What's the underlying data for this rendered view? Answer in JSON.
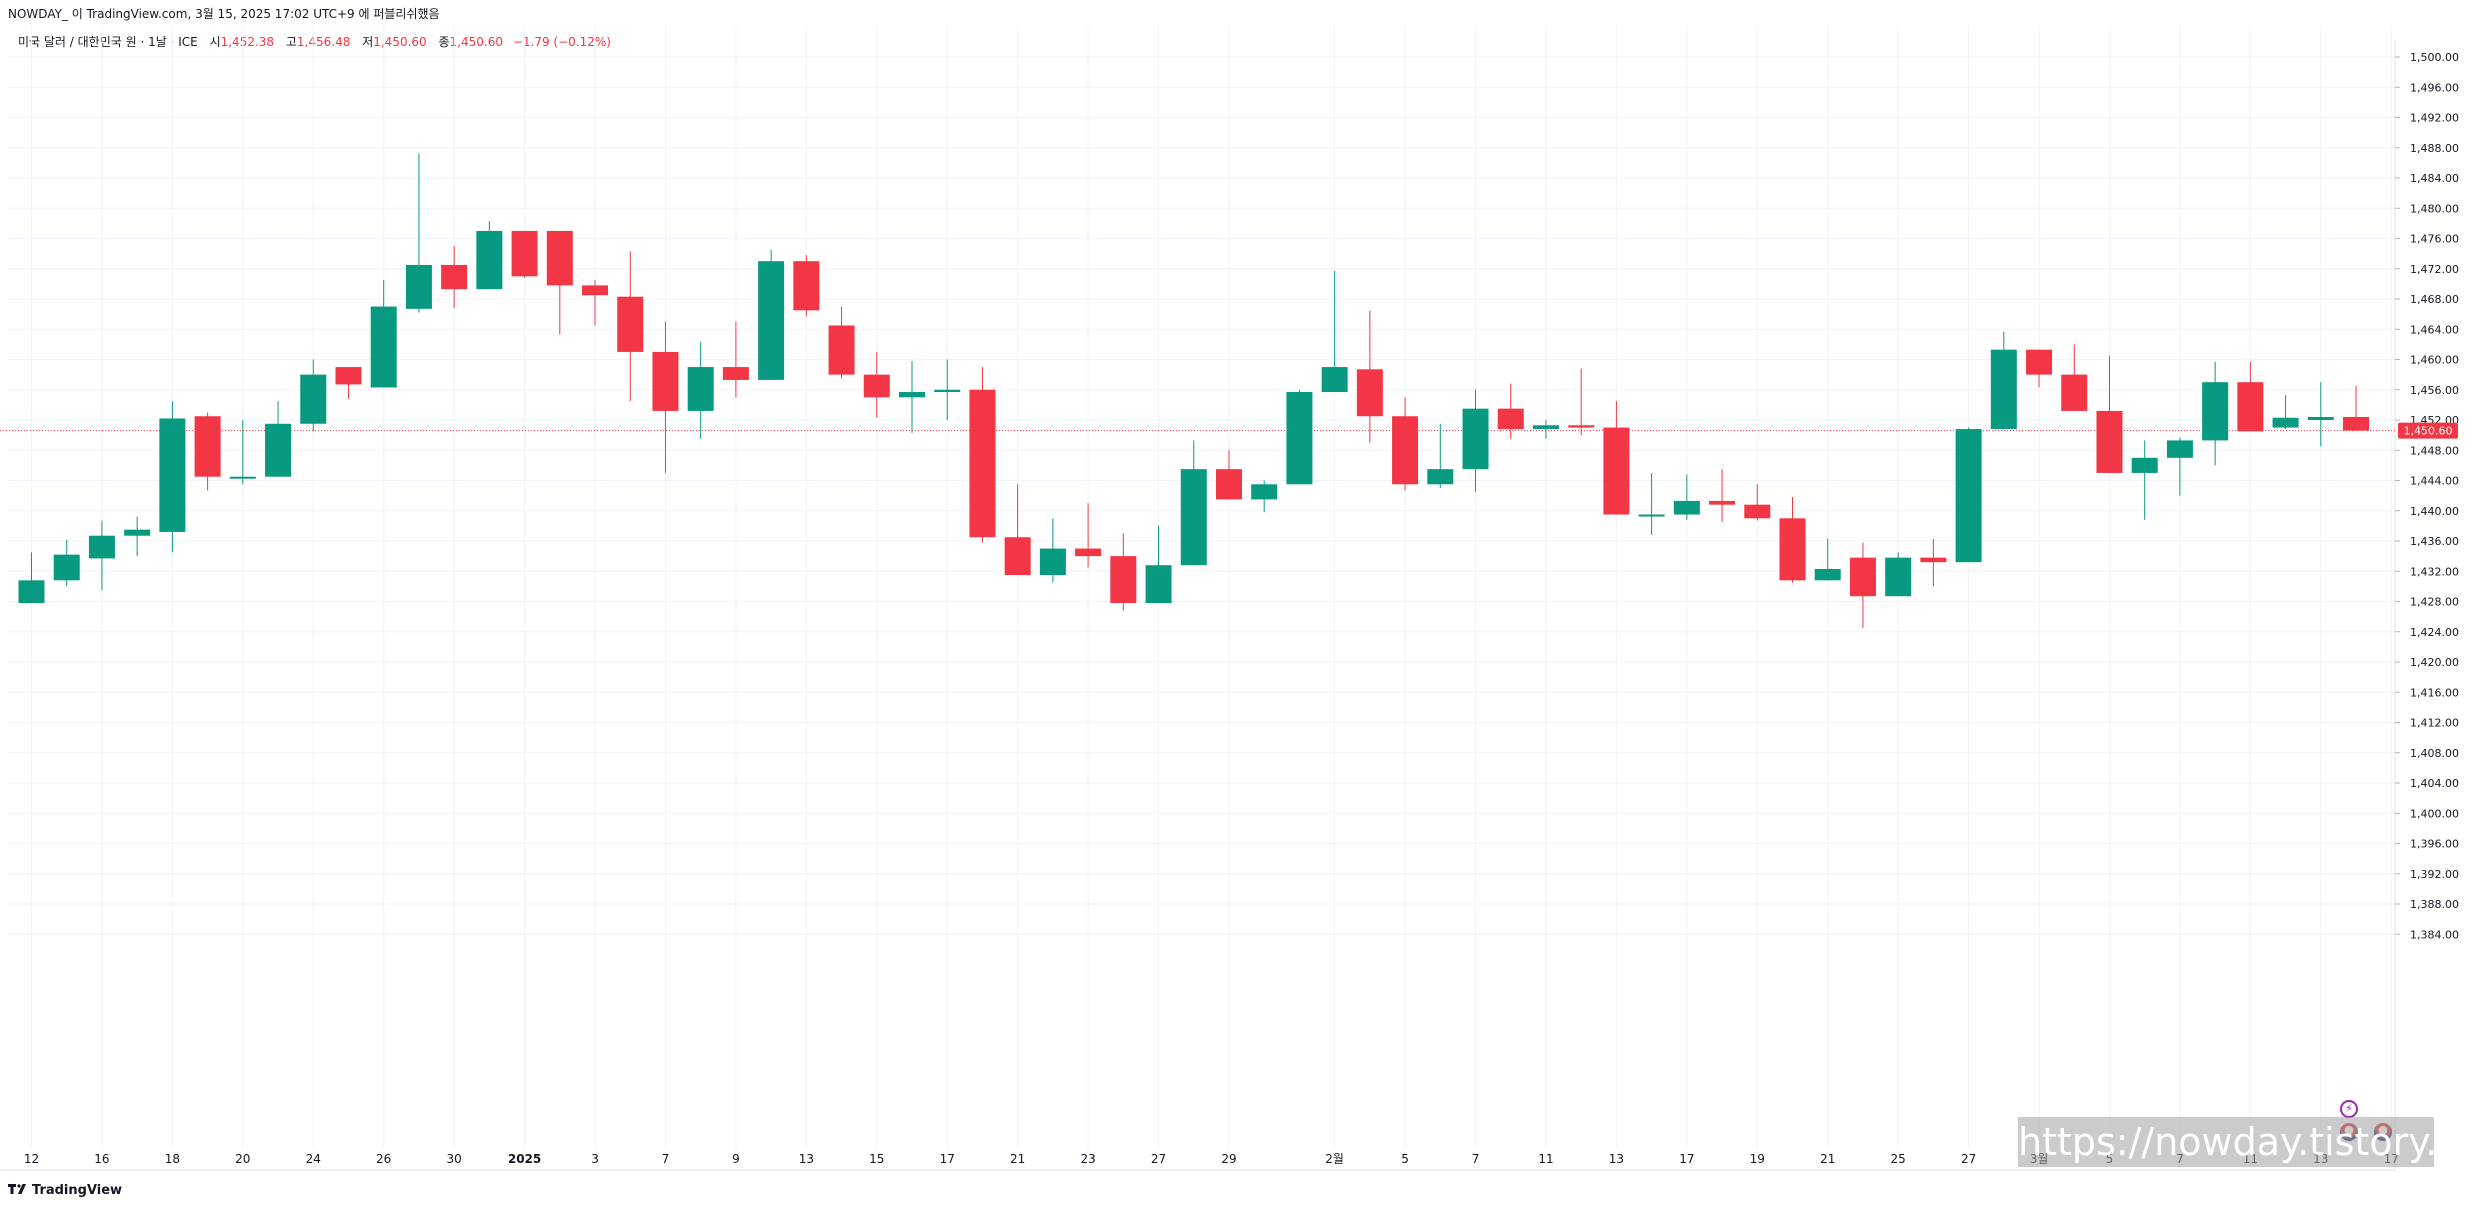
{
  "header": {
    "publish_line": "NOWDAY_ 이 TradingView.com, 3월 15, 2025 17:02 UTC+9 에 퍼블리쉬했음"
  },
  "legend": {
    "symbol": "미국 달러 / 대한민국 원 · 1날 · ICE",
    "open_label": "시",
    "open_value": "1,452.38",
    "high_label": "고",
    "high_value": "1,456.48",
    "low_label": "저",
    "low_value": "1,450.60",
    "close_label": "종",
    "close_value": "1,450.60",
    "change": "−1.79 (−0.12%)"
  },
  "footer": {
    "brand": "TradingView"
  },
  "watermark": "https://nowday.tistory.com",
  "icons": {
    "flash": "flash-icon",
    "flag": "us-flag-icon"
  },
  "colors": {
    "up": "#089981",
    "down": "#f23645",
    "grid": "#f0f3fa",
    "text": "#131722"
  },
  "chart_data": {
    "type": "candlestick",
    "ylim": [
      1382,
      1502
    ],
    "y_ticks": [
      1384,
      1388,
      1392,
      1396,
      1400,
      1404,
      1408,
      1412,
      1416,
      1420,
      1424,
      1428,
      1432,
      1436,
      1440,
      1444,
      1448,
      1452,
      1456,
      1460,
      1464,
      1468,
      1472,
      1476,
      1480,
      1484,
      1488,
      1492,
      1496,
      1500
    ],
    "y_tick_labels": [
      "1,384.00",
      "1,388.00",
      "1,392.00",
      "1,396.00",
      "1,400.00",
      "1,404.00",
      "1,408.00",
      "1,412.00",
      "1,416.00",
      "1,420.00",
      "1,424.00",
      "1,428.00",
      "1,432.00",
      "1,436.00",
      "1,440.00",
      "1,444.00",
      "1,448.00",
      "1,452.00",
      "1,456.00",
      "1,460.00",
      "1,464.00",
      "1,468.00",
      "1,472.00",
      "1,476.00",
      "1,480.00",
      "1,484.00",
      "1,488.00",
      "1,492.00",
      "1,496.00",
      "1,500.00"
    ],
    "x_tick_labels": [
      {
        "i": 0,
        "label": "12"
      },
      {
        "i": 2,
        "label": "16"
      },
      {
        "i": 4,
        "label": "18"
      },
      {
        "i": 6,
        "label": "20"
      },
      {
        "i": 8,
        "label": "24"
      },
      {
        "i": 10,
        "label": "26"
      },
      {
        "i": 12,
        "label": "30"
      },
      {
        "i": 14,
        "label": "2025",
        "bold": true
      },
      {
        "i": 16,
        "label": "3"
      },
      {
        "i": 18,
        "label": "7"
      },
      {
        "i": 20,
        "label": "9"
      },
      {
        "i": 22,
        "label": "13"
      },
      {
        "i": 24,
        "label": "15"
      },
      {
        "i": 26,
        "label": "17"
      },
      {
        "i": 28,
        "label": "21"
      },
      {
        "i": 30,
        "label": "23"
      },
      {
        "i": 32,
        "label": "27"
      },
      {
        "i": 34,
        "label": "29"
      },
      {
        "i": 37,
        "label": "2월"
      },
      {
        "i": 39,
        "label": "5"
      },
      {
        "i": 41,
        "label": "7"
      },
      {
        "i": 43,
        "label": "11"
      },
      {
        "i": 45,
        "label": "13"
      },
      {
        "i": 47,
        "label": "17"
      },
      {
        "i": 49,
        "label": "19"
      },
      {
        "i": 51,
        "label": "21"
      },
      {
        "i": 53,
        "label": "25"
      },
      {
        "i": 55,
        "label": "27"
      },
      {
        "i": 57,
        "label": "3월"
      },
      {
        "i": 59,
        "label": "5"
      },
      {
        "i": 61,
        "label": "7"
      },
      {
        "i": 63,
        "label": "11"
      },
      {
        "i": 65,
        "label": "13"
      },
      {
        "i": 67,
        "label": "17"
      }
    ],
    "current_price": 1450.6,
    "current_price_label": "1,450.60",
    "candles": [
      {
        "o": 1427.8,
        "h": 1434.5,
        "l": 1427.8,
        "c": 1430.8
      },
      {
        "o": 1430.8,
        "h": 1436.2,
        "l": 1430.0,
        "c": 1434.2
      },
      {
        "o": 1433.7,
        "h": 1438.7,
        "l": 1429.5,
        "c": 1436.7
      },
      {
        "o": 1436.7,
        "h": 1439.2,
        "l": 1434.0,
        "c": 1437.5
      },
      {
        "o": 1437.2,
        "h": 1454.5,
        "l": 1434.5,
        "c": 1452.2
      },
      {
        "o": 1452.5,
        "h": 1453.0,
        "l": 1442.7,
        "c": 1444.5
      },
      {
        "o": 1444.5,
        "h": 1452.0,
        "l": 1443.5,
        "c": 1444.5
      },
      {
        "o": 1444.5,
        "h": 1454.5,
        "l": 1444.5,
        "c": 1451.5
      },
      {
        "o": 1451.5,
        "h": 1460.0,
        "l": 1450.5,
        "c": 1458.0
      },
      {
        "o": 1459.0,
        "h": 1459.0,
        "l": 1454.8,
        "c": 1456.7
      },
      {
        "o": 1456.3,
        "h": 1470.5,
        "l": 1456.3,
        "c": 1467.0
      },
      {
        "o": 1466.7,
        "h": 1487.2,
        "l": 1466.2,
        "c": 1472.5
      },
      {
        "o": 1472.5,
        "h": 1475.0,
        "l": 1466.8,
        "c": 1469.3
      },
      {
        "o": 1469.3,
        "h": 1478.3,
        "l": 1469.3,
        "c": 1477.0
      },
      {
        "o": 1477.0,
        "h": 1477.0,
        "l": 1470.8,
        "c": 1471.0
      },
      {
        "o": 1477.0,
        "h": 1477.0,
        "l": 1463.3,
        "c": 1469.8
      },
      {
        "o": 1469.8,
        "h": 1470.5,
        "l": 1464.5,
        "c": 1468.5
      },
      {
        "o": 1468.3,
        "h": 1474.3,
        "l": 1454.5,
        "c": 1461.0
      },
      {
        "o": 1461.0,
        "h": 1465.0,
        "l": 1445.0,
        "c": 1453.2
      },
      {
        "o": 1453.2,
        "h": 1462.3,
        "l": 1449.5,
        "c": 1459.0
      },
      {
        "o": 1459.0,
        "h": 1465.0,
        "l": 1455.0,
        "c": 1457.3
      },
      {
        "o": 1457.3,
        "h": 1474.5,
        "l": 1457.3,
        "c": 1473.0
      },
      {
        "o": 1473.0,
        "h": 1473.8,
        "l": 1465.7,
        "c": 1466.5
      },
      {
        "o": 1464.5,
        "h": 1467.0,
        "l": 1457.5,
        "c": 1458.0
      },
      {
        "o": 1458.0,
        "h": 1461.0,
        "l": 1452.3,
        "c": 1455.0
      },
      {
        "o": 1455.0,
        "h": 1459.8,
        "l": 1450.3,
        "c": 1455.7
      },
      {
        "o": 1455.7,
        "h": 1460.0,
        "l": 1452.0,
        "c": 1456.0
      },
      {
        "o": 1456.0,
        "h": 1459.0,
        "l": 1435.8,
        "c": 1436.5
      },
      {
        "o": 1436.5,
        "h": 1443.5,
        "l": 1431.5,
        "c": 1431.5
      },
      {
        "o": 1431.5,
        "h": 1439.0,
        "l": 1430.5,
        "c": 1435.0
      },
      {
        "o": 1435.0,
        "h": 1441.0,
        "l": 1432.5,
        "c": 1434.0
      },
      {
        "o": 1434.0,
        "h": 1437.0,
        "l": 1426.8,
        "c": 1427.8
      },
      {
        "o": 1427.8,
        "h": 1438.0,
        "l": 1427.8,
        "c": 1432.8
      },
      {
        "o": 1432.8,
        "h": 1449.3,
        "l": 1432.8,
        "c": 1445.5
      },
      {
        "o": 1445.5,
        "h": 1448.0,
        "l": 1441.5,
        "c": 1441.5
      },
      {
        "o": 1441.5,
        "h": 1444.0,
        "l": 1439.8,
        "c": 1443.5
      },
      {
        "o": 1443.5,
        "h": 1456.0,
        "l": 1443.5,
        "c": 1455.7
      },
      {
        "o": 1455.7,
        "h": 1471.7,
        "l": 1455.7,
        "c": 1459.0
      },
      {
        "o": 1458.7,
        "h": 1466.5,
        "l": 1449.0,
        "c": 1452.5
      },
      {
        "o": 1452.5,
        "h": 1455.0,
        "l": 1442.7,
        "c": 1443.5
      },
      {
        "o": 1443.5,
        "h": 1451.5,
        "l": 1443.0,
        "c": 1445.5
      },
      {
        "o": 1445.5,
        "h": 1456.0,
        "l": 1442.5,
        "c": 1453.5
      },
      {
        "o": 1453.5,
        "h": 1456.8,
        "l": 1449.5,
        "c": 1450.8
      },
      {
        "o": 1450.8,
        "h": 1452.0,
        "l": 1449.5,
        "c": 1451.3
      },
      {
        "o": 1451.3,
        "h": 1458.8,
        "l": 1450.0,
        "c": 1451.0
      },
      {
        "o": 1451.0,
        "h": 1454.5,
        "l": 1439.5,
        "c": 1439.5
      },
      {
        "o": 1439.5,
        "h": 1445.0,
        "l": 1436.8,
        "c": 1439.5
      },
      {
        "o": 1439.5,
        "h": 1444.8,
        "l": 1438.8,
        "c": 1441.3
      },
      {
        "o": 1441.3,
        "h": 1445.5,
        "l": 1438.5,
        "c": 1440.8
      },
      {
        "o": 1440.8,
        "h": 1443.5,
        "l": 1438.7,
        "c": 1439.0
      },
      {
        "o": 1439.0,
        "h": 1441.8,
        "l": 1430.5,
        "c": 1430.8
      },
      {
        "o": 1430.8,
        "h": 1436.3,
        "l": 1430.8,
        "c": 1432.3
      },
      {
        "o": 1433.8,
        "h": 1435.8,
        "l": 1424.5,
        "c": 1428.7
      },
      {
        "o": 1428.7,
        "h": 1434.5,
        "l": 1428.7,
        "c": 1433.8
      },
      {
        "o": 1433.8,
        "h": 1436.3,
        "l": 1430.0,
        "c": 1433.2
      },
      {
        "o": 1433.2,
        "h": 1451.0,
        "l": 1433.2,
        "c": 1450.8
      },
      {
        "o": 1450.8,
        "h": 1463.7,
        "l": 1450.8,
        "c": 1461.3
      },
      {
        "o": 1461.3,
        "h": 1461.3,
        "l": 1456.3,
        "c": 1458.0
      },
      {
        "o": 1458.0,
        "h": 1462.0,
        "l": 1453.2,
        "c": 1453.2
      },
      {
        "o": 1453.2,
        "h": 1460.5,
        "l": 1445.0,
        "c": 1445.0
      },
      {
        "o": 1445.0,
        "h": 1449.3,
        "l": 1438.8,
        "c": 1447.0
      },
      {
        "o": 1447.0,
        "h": 1449.7,
        "l": 1442.0,
        "c": 1449.3
      },
      {
        "o": 1449.3,
        "h": 1459.7,
        "l": 1446.0,
        "c": 1457.0
      },
      {
        "o": 1457.0,
        "h": 1459.7,
        "l": 1450.5,
        "c": 1450.5
      },
      {
        "o": 1451.0,
        "h": 1455.3,
        "l": 1450.8,
        "c": 1452.3
      },
      {
        "o": 1452.0,
        "h": 1457.0,
        "l": 1448.5,
        "c": 1452.4
      },
      {
        "o": 1452.4,
        "h": 1456.5,
        "l": 1450.6,
        "c": 1450.6
      }
    ]
  }
}
